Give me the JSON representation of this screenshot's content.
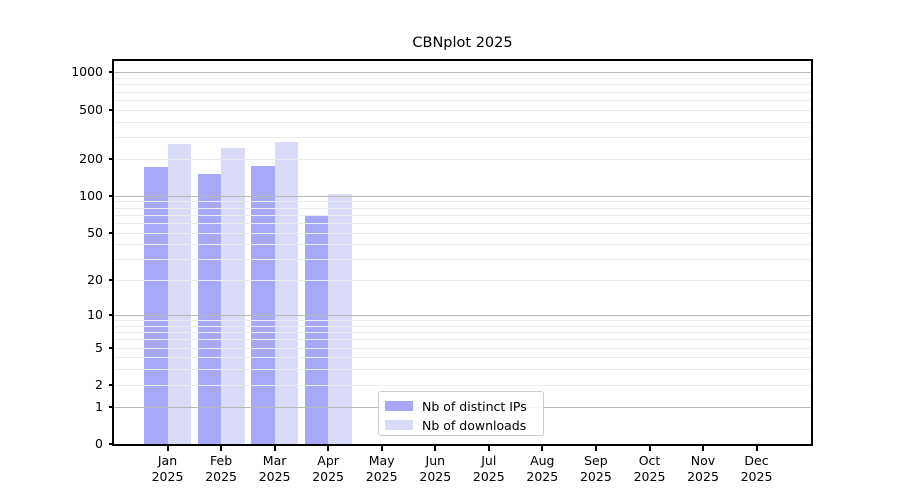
{
  "title": "CBNplot 2025",
  "legend": {
    "items": [
      {
        "label": "Nb of distinct IPs",
        "color": "#a8a8f8"
      },
      {
        "label": "Nb of downloads",
        "color": "#dadaf9"
      }
    ]
  },
  "chart_data": {
    "type": "bar",
    "title": "CBNplot 2025",
    "scale": "log1p (symlog-like: 0 linear to 1, then logarithmic to 1000)",
    "categories": [
      "Jan",
      "Feb",
      "Mar",
      "Apr",
      "May",
      "Jun",
      "Jul",
      "Aug",
      "Sep",
      "Oct",
      "Nov",
      "Dec"
    ],
    "year": "2025",
    "series": [
      {
        "name": "Nb of distinct IPs",
        "color": "#a8a8f8",
        "values": [
          172,
          150,
          176,
          68,
          0,
          0,
          0,
          0,
          0,
          0,
          0,
          0
        ]
      },
      {
        "name": "Nb of downloads",
        "color": "#dadaf9",
        "values": [
          265,
          244,
          272,
          103,
          0,
          0,
          0,
          0,
          0,
          0,
          0,
          0
        ]
      }
    ],
    "y_ticks": [
      0,
      1,
      2,
      5,
      10,
      20,
      50,
      100,
      200,
      500,
      1000
    ],
    "ylim": [
      0,
      1250
    ],
    "xlabel": "",
    "ylabel": "",
    "grid": "horizontal only; major lines at 1,10,100,1000; minor lines at 2-9 of each decade",
    "legend_position": "inside, lower center"
  }
}
